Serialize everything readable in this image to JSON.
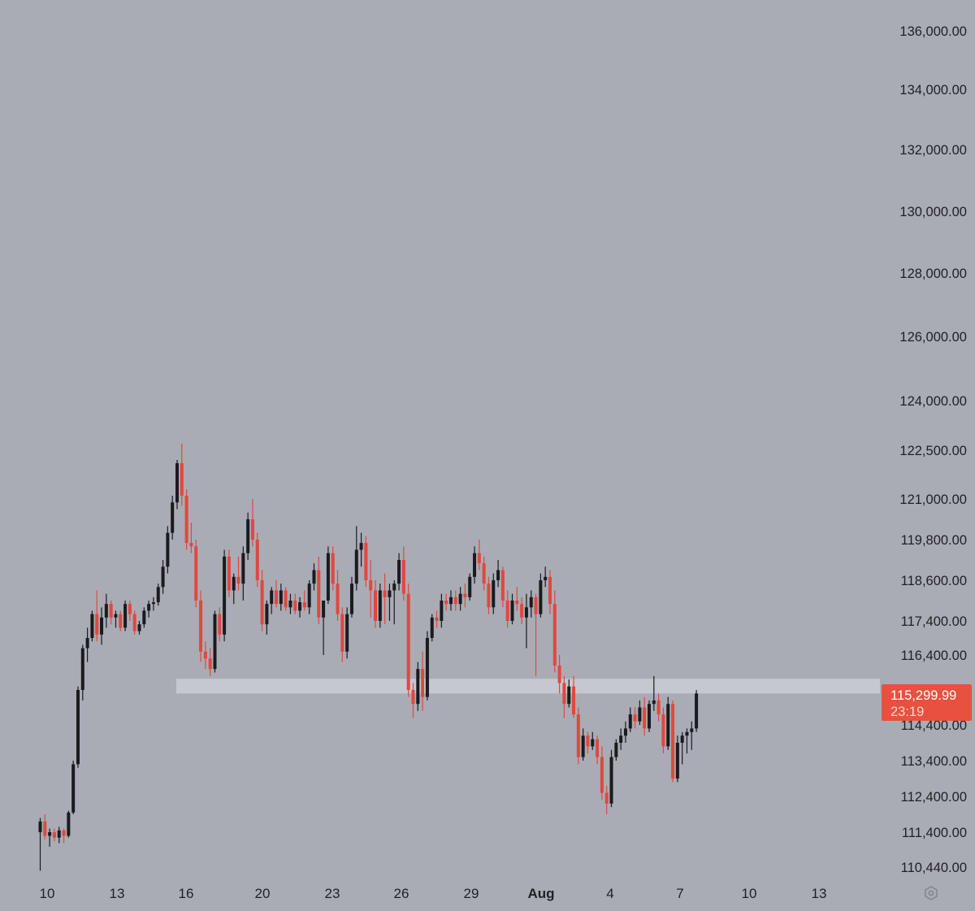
{
  "chart_data": {
    "type": "candlestick",
    "title": "",
    "xlabel": "",
    "ylabel": "",
    "y_ticks": [
      "136,000.00",
      "134,000.00",
      "132,000.00",
      "130,000.00",
      "128,000.00",
      "126,000.00",
      "124,000.00",
      "122,500.00",
      "121,000.00",
      "119,800.00",
      "118,600.00",
      "117,400.00",
      "116,400.00",
      "114,400.00",
      "113,400.00",
      "112,400.00",
      "111,400.00",
      "110,440.00"
    ],
    "x_ticks": [
      "10",
      "13",
      "16",
      "20",
      "23",
      "26",
      "29",
      "Aug",
      "4",
      "7",
      "10",
      "13"
    ],
    "bold_x_tick": "Aug",
    "scale": "logarithmic",
    "grid": false,
    "colors": {
      "background": "#a9acb5",
      "up": "#1a1b1f",
      "down": "#e0483e",
      "price_tag": "#e8503f",
      "zone": "#c6c8d0"
    },
    "zone": {
      "top": 115720,
      "bottom": 115300
    },
    "last_price": {
      "value": "115,299.99",
      "countdown": "23:19"
    },
    "settings_icon": "gear-icon",
    "candles": [
      [
        111400,
        111800,
        110340,
        111700
      ],
      [
        111700,
        111900,
        111200,
        111300
      ],
      [
        111300,
        111500,
        111000,
        111400
      ],
      [
        111400,
        111500,
        111150,
        111250
      ],
      [
        111250,
        111550,
        111100,
        111450
      ],
      [
        111450,
        111500,
        111100,
        111300
      ],
      [
        111300,
        112000,
        111250,
        111950
      ],
      [
        111950,
        113400,
        111900,
        113300
      ],
      [
        113300,
        115500,
        113200,
        115400
      ],
      [
        115400,
        116700,
        115100,
        116600
      ],
      [
        116600,
        117200,
        116200,
        116900
      ],
      [
        116900,
        117700,
        116800,
        117600
      ],
      [
        117600,
        118300,
        116800,
        117000
      ],
      [
        117000,
        117800,
        116700,
        117500
      ],
      [
        117500,
        118200,
        117200,
        117900
      ],
      [
        117900,
        118000,
        117300,
        117500
      ],
      [
        117500,
        117700,
        117200,
        117600
      ],
      [
        117600,
        117700,
        117100,
        117200
      ],
      [
        117200,
        118000,
        117100,
        117900
      ],
      [
        117900,
        118000,
        117400,
        117600
      ],
      [
        117600,
        117700,
        117000,
        117100
      ],
      [
        117100,
        117400,
        117000,
        117300
      ],
      [
        117300,
        117800,
        117200,
        117700
      ],
      [
        117700,
        118000,
        117500,
        117900
      ],
      [
        117900,
        118100,
        117700,
        117950
      ],
      [
        117950,
        118500,
        117850,
        118400
      ],
      [
        118400,
        119200,
        118200,
        119000
      ],
      [
        119000,
        120200,
        118800,
        120000
      ],
      [
        120000,
        121100,
        119800,
        120900
      ],
      [
        120900,
        122200,
        120700,
        122100
      ],
      [
        122100,
        122700,
        120800,
        121100
      ],
      [
        121100,
        121300,
        119500,
        119700
      ],
      [
        119700,
        120300,
        119400,
        119600
      ],
      [
        119600,
        119800,
        117800,
        118000
      ],
      [
        118000,
        118300,
        116200,
        116500
      ],
      [
        116500,
        116800,
        116000,
        116300
      ],
      [
        116300,
        116600,
        115800,
        116000
      ],
      [
        116000,
        117700,
        115900,
        117600
      ],
      [
        117600,
        117800,
        116800,
        117000
      ],
      [
        117000,
        119500,
        116800,
        119300
      ],
      [
        119300,
        119500,
        118100,
        118300
      ],
      [
        118300,
        118800,
        117900,
        118700
      ],
      [
        118700,
        119300,
        118300,
        118500
      ],
      [
        118500,
        119600,
        118000,
        119400
      ],
      [
        119400,
        120600,
        119200,
        120400
      ],
      [
        120400,
        121000,
        119600,
        119800
      ],
      [
        119800,
        120000,
        118400,
        118600
      ],
      [
        118600,
        118900,
        117100,
        117300
      ],
      [
        117300,
        118000,
        117000,
        117900
      ],
      [
        117900,
        118400,
        117600,
        118300
      ],
      [
        118300,
        118600,
        117800,
        117900
      ],
      [
        117900,
        118500,
        117700,
        118300
      ],
      [
        118300,
        118400,
        117700,
        117800
      ],
      [
        117800,
        118200,
        117600,
        118000
      ],
      [
        118000,
        118200,
        117600,
        117700
      ],
      [
        117700,
        118100,
        117500,
        117950
      ],
      [
        117950,
        118300,
        117700,
        117800
      ],
      [
        117800,
        118600,
        117600,
        118500
      ],
      [
        118500,
        119100,
        118300,
        118900
      ],
      [
        118900,
        119300,
        117300,
        117500
      ],
      [
        117500,
        118000,
        116400,
        118000
      ],
      [
        118000,
        119600,
        117900,
        119400
      ],
      [
        119400,
        119600,
        118300,
        118500
      ],
      [
        118500,
        118900,
        117400,
        117600
      ],
      [
        117600,
        117800,
        116200,
        116500
      ],
      [
        116500,
        117800,
        116300,
        117600
      ],
      [
        117600,
        118700,
        117500,
        118500
      ],
      [
        118500,
        120200,
        118300,
        119500
      ],
      [
        119500,
        120000,
        119000,
        119700
      ],
      [
        119700,
        119900,
        118400,
        118600
      ],
      [
        118600,
        119200,
        117500,
        118300
      ],
      [
        118300,
        118600,
        117200,
        117400
      ],
      [
        117400,
        118500,
        117200,
        118300
      ],
      [
        118300,
        118800,
        117300,
        118100
      ],
      [
        118100,
        118500,
        117400,
        118300
      ],
      [
        118300,
        118600,
        117300,
        118500
      ],
      [
        118500,
        119400,
        118300,
        119200
      ],
      [
        119200,
        119600,
        118000,
        118200
      ],
      [
        118200,
        118500,
        115200,
        115400
      ],
      [
        115400,
        115600,
        114600,
        115000
      ],
      [
        115000,
        116200,
        114800,
        116000
      ],
      [
        116000,
        116500,
        114800,
        115200
      ],
      [
        115200,
        117100,
        115100,
        116900
      ],
      [
        116900,
        117600,
        116800,
        117500
      ],
      [
        117500,
        117700,
        117200,
        117400
      ],
      [
        117400,
        118200,
        117200,
        118000
      ],
      [
        118000,
        118200,
        117700,
        117900
      ],
      [
        117900,
        118300,
        117700,
        118100
      ],
      [
        118100,
        118300,
        117700,
        117900
      ],
      [
        117900,
        118400,
        117700,
        118200
      ],
      [
        118200,
        118500,
        117800,
        118100
      ],
      [
        118100,
        118800,
        118000,
        118700
      ],
      [
        118700,
        119600,
        118500,
        119400
      ],
      [
        119400,
        119800,
        118900,
        119100
      ],
      [
        119100,
        119300,
        118300,
        118500
      ],
      [
        118500,
        118700,
        117600,
        117800
      ],
      [
        117800,
        118800,
        117600,
        118600
      ],
      [
        118600,
        119200,
        118400,
        118900
      ],
      [
        118900,
        119000,
        117800,
        118000
      ],
      [
        118000,
        118300,
        117200,
        117400
      ],
      [
        117400,
        118200,
        117300,
        118000
      ],
      [
        118000,
        118400,
        117700,
        117900
      ],
      [
        117900,
        118100,
        117300,
        117500
      ],
      [
        117500,
        118200,
        116600,
        117800
      ],
      [
        117800,
        118300,
        117500,
        118100
      ],
      [
        118100,
        118200,
        115800,
        117600
      ],
      [
        117600,
        118800,
        117500,
        118600
      ],
      [
        118600,
        119000,
        118400,
        118700
      ],
      [
        118700,
        118900,
        117600,
        117900
      ],
      [
        117900,
        118300,
        115900,
        116100
      ],
      [
        116100,
        116400,
        115300,
        115600
      ],
      [
        115600,
        115800,
        114600,
        115000
      ],
      [
        115000,
        115700,
        114900,
        115500
      ],
      [
        115500,
        115800,
        114600,
        114700
      ],
      [
        114700,
        114900,
        113300,
        113500
      ],
      [
        113500,
        114300,
        113400,
        114100
      ],
      [
        114100,
        114200,
        113600,
        113800
      ],
      [
        113800,
        114200,
        113700,
        114000
      ],
      [
        114000,
        114100,
        113300,
        113500
      ],
      [
        113500,
        113800,
        112300,
        112500
      ],
      [
        112500,
        112700,
        111900,
        112200
      ],
      [
        112200,
        113700,
        112100,
        113500
      ],
      [
        113500,
        114000,
        113400,
        113900
      ],
      [
        113900,
        114300,
        113700,
        114100
      ],
      [
        114100,
        114500,
        113900,
        114300
      ],
      [
        114300,
        114900,
        114200,
        114700
      ],
      [
        114700,
        114900,
        114300,
        114500
      ],
      [
        114500,
        115100,
        114400,
        114900
      ],
      [
        114900,
        115200,
        114100,
        114300
      ],
      [
        114300,
        115100,
        114200,
        115000
      ],
      [
        115000,
        115800,
        114800,
        115100
      ],
      [
        115100,
        115300,
        114500,
        114700
      ],
      [
        114700,
        114900,
        113600,
        113800
      ],
      [
        113800,
        115200,
        113700,
        115000
      ],
      [
        115000,
        115100,
        112800,
        112900
      ],
      [
        112900,
        114100,
        112800,
        113900
      ],
      [
        113900,
        114200,
        113300,
        114100
      ],
      [
        114100,
        114300,
        113600,
        114200
      ],
      [
        114200,
        114500,
        113700,
        114300
      ],
      [
        114300,
        115400,
        114200,
        115300
      ]
    ]
  }
}
